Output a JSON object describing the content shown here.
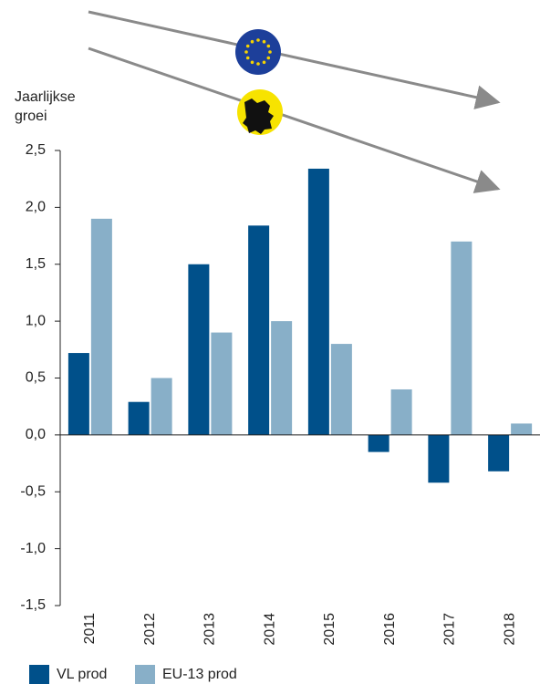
{
  "chart_data": {
    "type": "bar",
    "y_label": "Jaarlijkse groei",
    "categories": [
      "2011",
      "2012",
      "2013",
      "2014",
      "2015",
      "2016",
      "2017",
      "2018"
    ],
    "series": [
      {
        "name": "VL prod",
        "color": "#00508a",
        "values": [
          0.72,
          0.29,
          1.5,
          1.84,
          2.34,
          -0.15,
          -0.42,
          -0.32
        ]
      },
      {
        "name": "EU-13 prod",
        "color": "#88afc8",
        "values": [
          1.9,
          0.5,
          0.9,
          1.0,
          0.8,
          0.4,
          1.7,
          0.1
        ]
      }
    ],
    "ylim": [
      -1.5,
      2.5
    ],
    "yticks": [
      {
        "value": 2.5,
        "label": "2,5"
      },
      {
        "value": 2,
        "label": "2,0"
      },
      {
        "value": 1.5,
        "label": "1,5"
      },
      {
        "value": 1,
        "label": "1,0"
      },
      {
        "value": 0.5,
        "label": "0,5"
      },
      {
        "value": 0,
        "label": "0,0"
      },
      {
        "value": -0.5,
        "label": "-0,5"
      },
      {
        "value": -1,
        "label": "-1,0"
      },
      {
        "value": -1.5,
        "label": "-1,5"
      }
    ],
    "grid": false,
    "legend": "bottom"
  }
}
